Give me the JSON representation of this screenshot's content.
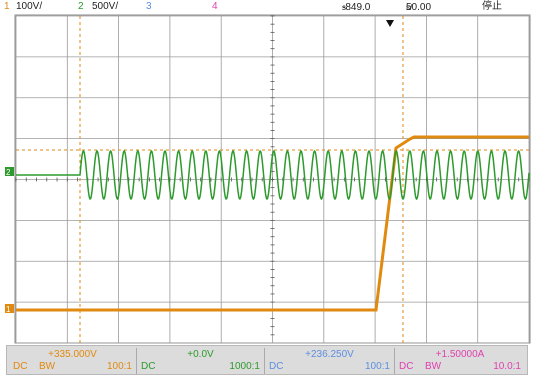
{
  "header": {
    "ch1_num": "1",
    "ch1_scale": "100V/",
    "ch2_num": "2",
    "ch2_scale": "500V/",
    "ch3_num": "3",
    "ch4_num": "4",
    "time_offset": "-849.0",
    "timebase": "50.00",
    "run_state": "停止"
  },
  "markers": {
    "ch2_ground": "2",
    "ch1_ground": "1"
  },
  "colors": {
    "ch1": "#e08a10",
    "ch2": "#2c9a2c",
    "ch3": "#5b8fe0",
    "ch4": "#e040b0",
    "grid": "#9a9a9a",
    "footer_bg": "#dcdcdc"
  },
  "footer": {
    "ch1": {
      "value": "+335.000V",
      "coupling": "DC",
      "bw": "BW",
      "probe": "100:1"
    },
    "ch2": {
      "value": "+0.0V",
      "coupling": "DC",
      "probe": "1000:1"
    },
    "ch3": {
      "value": "+236.250V",
      "coupling": "DC",
      "probe": "100:1"
    },
    "ch4": {
      "value": "+1.50000A",
      "coupling": "DC",
      "bw": "BW",
      "probe": "10.0:1"
    }
  }
}
